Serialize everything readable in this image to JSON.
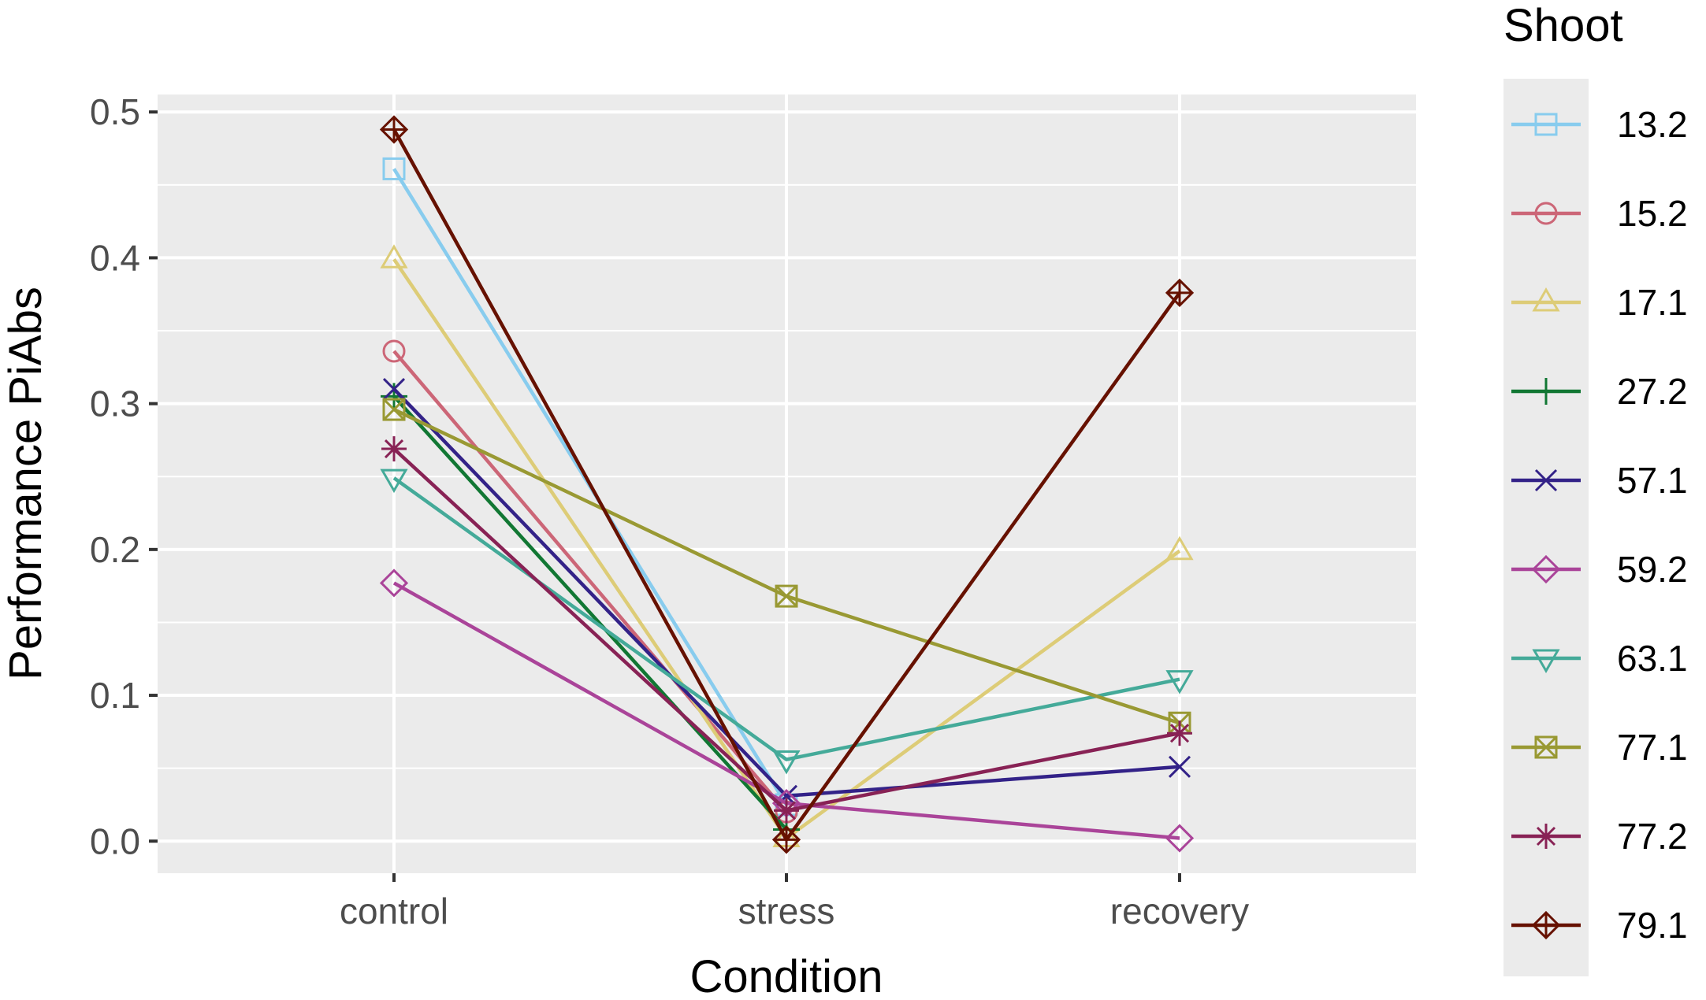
{
  "chart_data": {
    "type": "line",
    "title": "",
    "xlabel": "Condition",
    "ylabel": "Performance PiAbs",
    "categories": [
      "control",
      "stress",
      "recovery"
    ],
    "ylim": [
      -0.022,
      0.512
    ],
    "yticks": [
      0.0,
      0.1,
      0.2,
      0.3,
      0.4,
      0.5
    ],
    "ytick_labels": [
      "0.0",
      "0.1",
      "0.2",
      "0.3",
      "0.4",
      "0.5"
    ],
    "grid": true,
    "legend_title": "Shoot",
    "legend_position": "right",
    "series": [
      {
        "name": "13.2",
        "color": "#88CCEE",
        "marker": "square",
        "values": [
          0.461,
          0.025,
          null
        ]
      },
      {
        "name": "15.2",
        "color": "#CC6677",
        "marker": "circle",
        "values": [
          0.336,
          0.02,
          null
        ]
      },
      {
        "name": "17.1",
        "color": "#DDCC77",
        "marker": "triangle-up",
        "values": [
          0.399,
          0.002,
          0.199
        ]
      },
      {
        "name": "27.2",
        "color": "#117733",
        "marker": "plus",
        "values": [
          0.305,
          0.008,
          null
        ]
      },
      {
        "name": "57.1",
        "color": "#332288",
        "marker": "cross",
        "values": [
          0.31,
          0.031,
          0.051
        ]
      },
      {
        "name": "59.2",
        "color": "#AA4499",
        "marker": "diamond",
        "values": [
          0.177,
          0.026,
          0.002
        ]
      },
      {
        "name": "63.1",
        "color": "#44AA99",
        "marker": "triangle-down",
        "values": [
          0.249,
          0.056,
          0.111
        ]
      },
      {
        "name": "77.1",
        "color": "#999933",
        "marker": "square-cross",
        "values": [
          0.296,
          0.168,
          0.081
        ]
      },
      {
        "name": "77.2",
        "color": "#882255",
        "marker": "asterisk",
        "values": [
          0.269,
          0.021,
          0.074
        ]
      },
      {
        "name": "79.1",
        "color": "#661100",
        "marker": "diamond-plus",
        "values": [
          0.488,
          0.001,
          0.376
        ]
      }
    ]
  }
}
